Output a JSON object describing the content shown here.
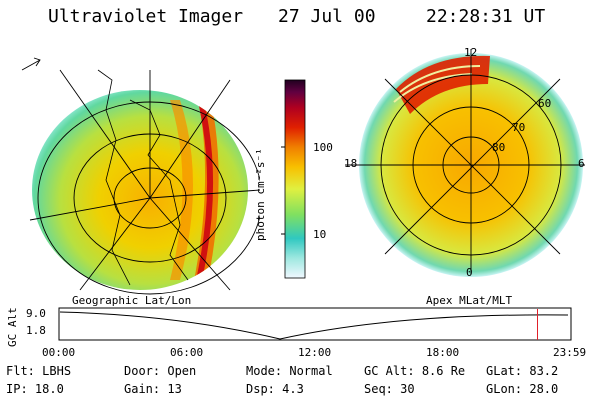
{
  "header": {
    "instrument": "Ultraviolet Imager",
    "date": "27 Jul 00",
    "time": "22:28:31 UT"
  },
  "left_panel": {
    "label": "Geographic Lat/Lon"
  },
  "right_panel": {
    "label": "Apex MLat/MLT",
    "mlt_labels": {
      "top": "12",
      "left": "18",
      "right": "6",
      "bottom": "0"
    },
    "lat_labels": [
      "60",
      "70",
      "80"
    ]
  },
  "colorbar": {
    "unit_label": "photon cm⁻²s⁻¹",
    "ticks": [
      {
        "label": "100",
        "value": 100
      },
      {
        "label": "10",
        "value": 10
      }
    ]
  },
  "timeline": {
    "ylabel": "GC Alt",
    "y_ticks": [
      "9.0",
      "1.8"
    ],
    "x_ticks": [
      "00:00",
      "06:00",
      "12:00",
      "18:00",
      "23:59"
    ],
    "current_marker_hour": 22.47
  },
  "info": {
    "row1": [
      {
        "key": "Flt:",
        "value": "LBHS"
      },
      {
        "key": "Door:",
        "value": "Open"
      },
      {
        "key": "Mode:",
        "value": "Normal"
      },
      {
        "key": "GC Alt:",
        "value": "8.6 Re"
      },
      {
        "key": "GLat:",
        "value": "83.2"
      }
    ],
    "row2": [
      {
        "key": "IP:",
        "value": "18.0"
      },
      {
        "key": "Gain:",
        "value": "13"
      },
      {
        "key": "Dsp:",
        "value": "4.3"
      },
      {
        "key": "Seq:",
        "value": "30"
      },
      {
        "key": "GLon:",
        "value": "28.0"
      }
    ]
  },
  "colors": {
    "marker": "#e0202a",
    "colorbar": [
      "#f0f8ff",
      "#9ee8e0",
      "#30c8c0",
      "#80e060",
      "#e0f040",
      "#f8c000",
      "#f08000",
      "#e02000",
      "#b00020",
      "#600040",
      "#200020"
    ]
  }
}
